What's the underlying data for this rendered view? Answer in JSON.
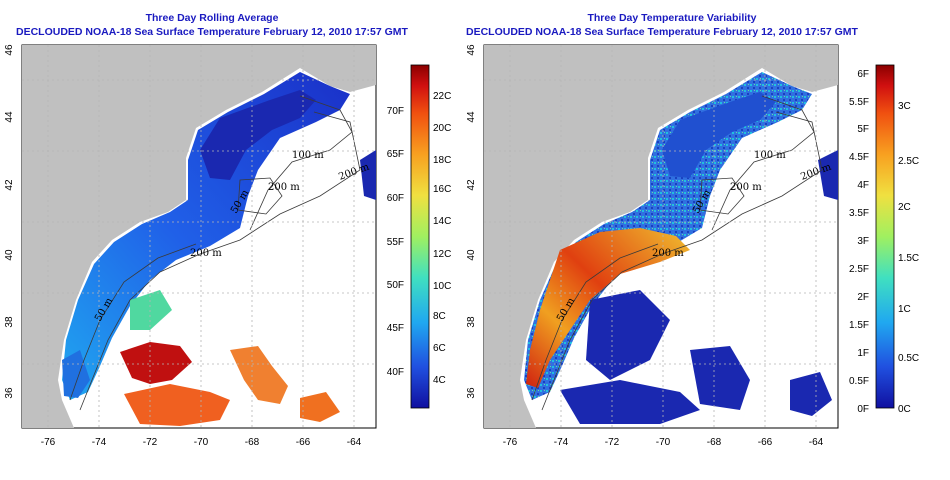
{
  "panels": [
    {
      "id": "avg",
      "title": "Three Day Rolling Average",
      "subtitle": "DECLOUDED NOAA-18 Sea Surface Temperature February 12, 2010 17:57 GMT",
      "lon_ticks": [
        "-76",
        "-74",
        "-72",
        "-70",
        "-68",
        "-66",
        "-64"
      ],
      "lat_ticks": [
        "36",
        "38",
        "40",
        "42",
        "44",
        "46"
      ],
      "contour_labels": [
        "100 m",
        "200 m",
        "50 m",
        "200 m",
        "200 m",
        "50 m"
      ],
      "colorbar": {
        "left_labels": [
          "70F",
          "65F",
          "60F",
          "55F",
          "50F",
          "45F",
          "40F"
        ],
        "right_labels": [
          "22C",
          "20C",
          "18C",
          "16C",
          "14C",
          "12C",
          "10C",
          "8C",
          "6C",
          "4C"
        ],
        "colors": [
          "#8b0000",
          "#d01010",
          "#f05010",
          "#f8a020",
          "#f0e040",
          "#a0f060",
          "#40e0c0",
          "#20a8f0",
          "#2050e0",
          "#1010a0"
        ]
      }
    },
    {
      "id": "var",
      "title": "Three Day Temperature Variability",
      "subtitle": "DECLOUDED NOAA-18 Sea Surface Temperature February 12, 2010 17:57 GMT",
      "lon_ticks": [
        "-76",
        "-74",
        "-72",
        "-70",
        "-68",
        "-66",
        "-64"
      ],
      "lat_ticks": [
        "36",
        "38",
        "40",
        "42",
        "44",
        "46"
      ],
      "contour_labels": [
        "100 m",
        "200 m",
        "50 m",
        "200 m",
        "200 m",
        "50 m"
      ],
      "colorbar": {
        "left_labels": [
          "6F",
          "5.5F",
          "5F",
          "4.5F",
          "4F",
          "3.5F",
          "3F",
          "2.5F",
          "2F",
          "1.5F",
          "1F",
          "0.5F",
          "0F"
        ],
        "right_labels": [
          "3C",
          "2.5C",
          "2C",
          "1.5C",
          "1C",
          "0.5C",
          "0C"
        ],
        "colors": [
          "#8b0000",
          "#d01010",
          "#f05010",
          "#f8a020",
          "#f0e040",
          "#a0f060",
          "#40e0c0",
          "#20a8f0",
          "#2050e0",
          "#1010a0"
        ]
      }
    }
  ],
  "colors": {
    "land": "#c0c0c0",
    "title": "#1a1ac0"
  }
}
